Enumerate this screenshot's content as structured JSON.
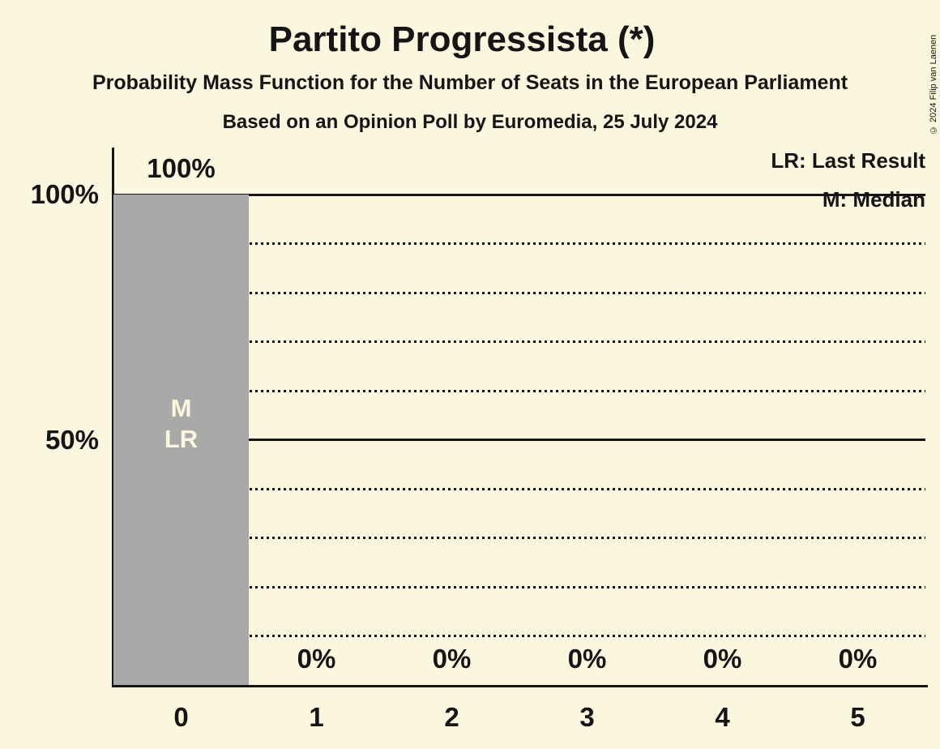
{
  "header": {
    "title": "Partito Progressista (*)",
    "subtitle": "Probability Mass Function for the Number of Seats in the European Parliament",
    "subsubtitle": "Based on an Opinion Poll by Euromedia, 25 July 2024"
  },
  "copyright": "© 2024 Filip van Laenen",
  "legend": {
    "lr": "LR: Last Result",
    "m": "M: Median"
  },
  "colors": {
    "background": "#FBF7DE",
    "bar": "#A9A9A7",
    "text": "#151515",
    "bar_label_text": "#FBF7DE"
  },
  "chart_data": {
    "type": "bar",
    "title": "Partito Progressista (*)",
    "subtitle": "Probability Mass Function for the Number of Seats in the European Parliament",
    "source_line": "Based on an Opinion Poll by Euromedia, 25 July 2024",
    "xlabel": "",
    "ylabel": "",
    "categories": [
      "0",
      "1",
      "2",
      "3",
      "4",
      "5"
    ],
    "values": [
      100,
      0,
      0,
      0,
      0,
      0
    ],
    "value_labels": [
      "100%",
      "0%",
      "0%",
      "0%",
      "0%",
      "0%"
    ],
    "annotations": [
      {
        "category_index": 0,
        "lines": [
          "M",
          "LR"
        ]
      }
    ],
    "y_ticks": [
      {
        "value": 100,
        "label": "100%"
      },
      {
        "value": 50,
        "label": "50%"
      }
    ],
    "ylim": [
      0,
      100
    ],
    "solid_gridlines": [
      100,
      50
    ],
    "dotted_gridlines": [
      90,
      80,
      70,
      60,
      40,
      30,
      20,
      10
    ],
    "grid": true,
    "legend_entries": [
      "LR: Last Result",
      "M: Median"
    ],
    "legend_position": "top-right"
  }
}
